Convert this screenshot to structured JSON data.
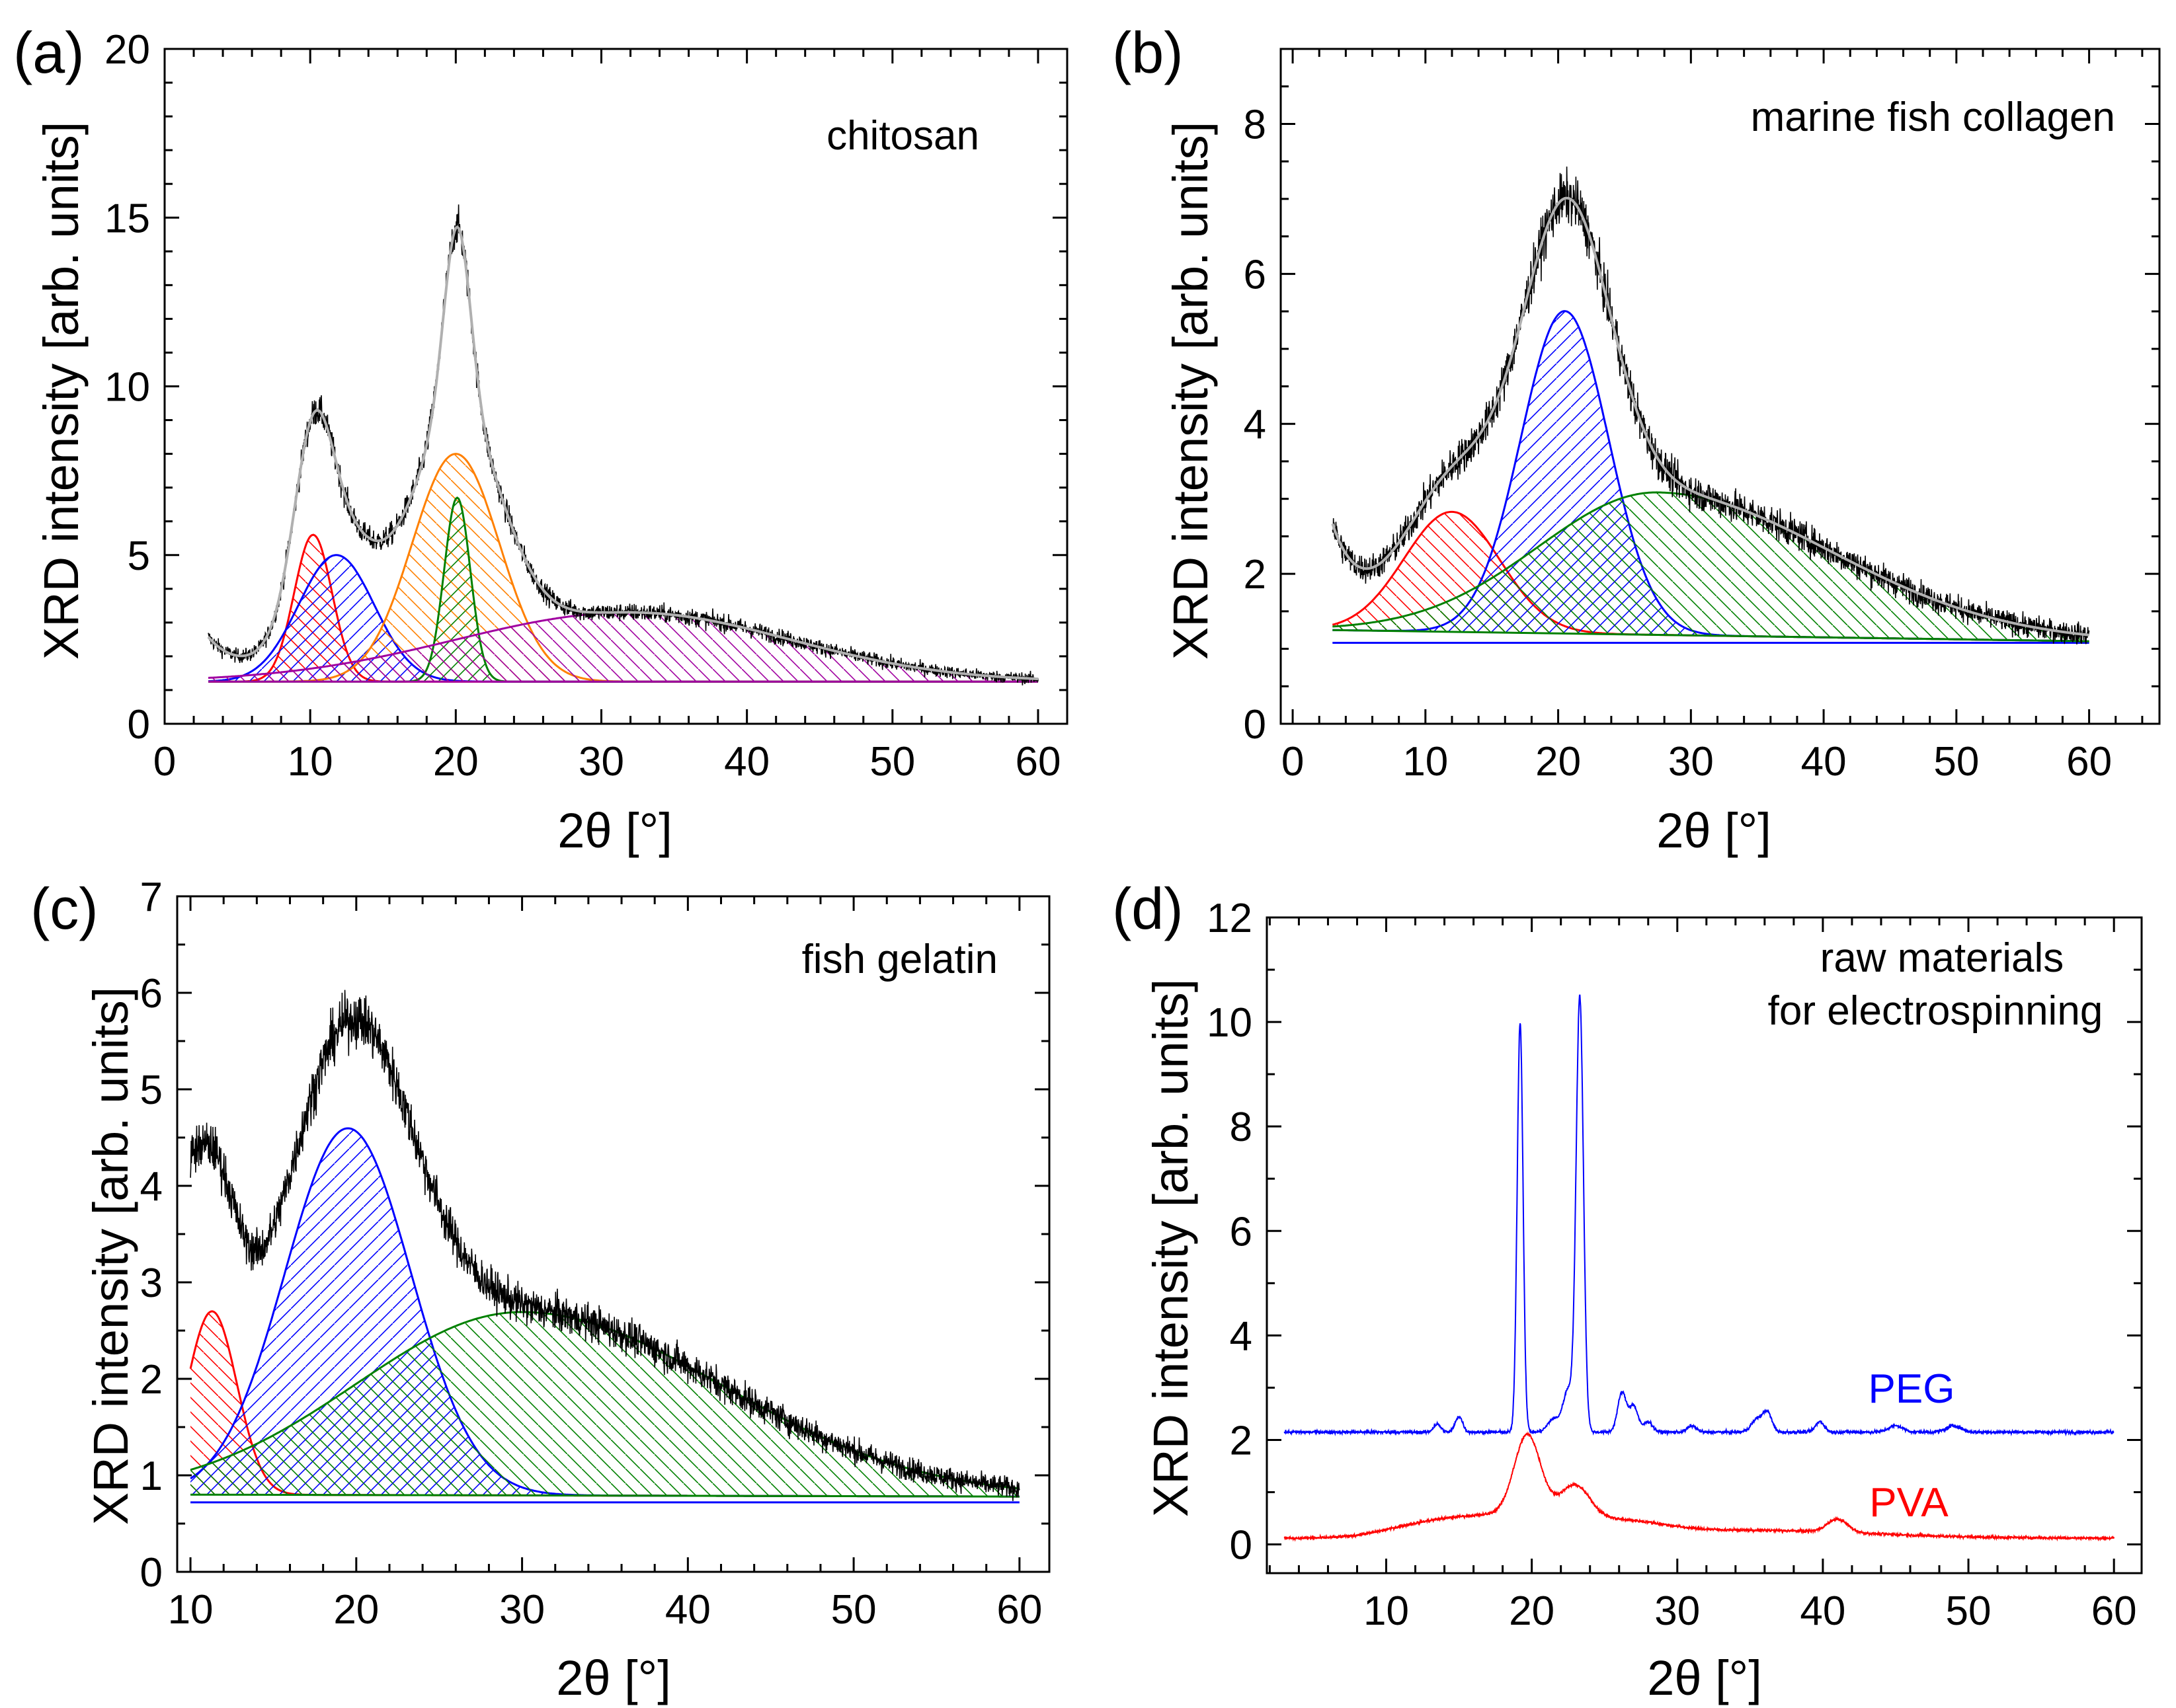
{
  "chart_data": [
    {
      "id": "a",
      "type": "line",
      "panel_label": "(a)",
      "sample_label": [
        "chitosan"
      ],
      "xlabel": "2θ [°]",
      "ylabel": "XRD intensity [arb. units]",
      "xlim": [
        0,
        62
      ],
      "ylim": [
        0,
        20
      ],
      "xticks": [
        0,
        10,
        20,
        30,
        40,
        50,
        60
      ],
      "yticks": [
        0,
        5,
        10,
        15,
        20
      ],
      "xminor": 2,
      "yminor": 1,
      "x_range": [
        3,
        60
      ],
      "baseline": [
        1.25,
        1.25
      ],
      "fit_line": true,
      "low_angle_rise": 1.2,
      "noise": 0.25,
      "components": [
        {
          "name": "peak1",
          "color": "#ff0000",
          "center": 10.2,
          "amplitude": 4.35,
          "sigma_left": 1.3,
          "sigma_right": 1.3
        },
        {
          "name": "peak2",
          "color": "#0000ff",
          "center": 11.8,
          "amplitude": 3.75,
          "sigma_left": 2.6,
          "sigma_right": 2.6
        },
        {
          "name": "peak3",
          "color": "#ff8000",
          "center": 20,
          "amplitude": 6.75,
          "sigma_left": 3.0,
          "sigma_right": 3.0
        },
        {
          "name": "peak4",
          "color": "#008000",
          "center": 20.1,
          "amplitude": 5.45,
          "sigma_left": 0.9,
          "sigma_right": 0.9
        },
        {
          "name": "peak5",
          "color": "#a000a0",
          "center": 32,
          "amplitude": 2.05,
          "sigma_left": 12,
          "sigma_right": 11
        }
      ]
    },
    {
      "id": "b",
      "type": "line",
      "panel_label": "(b)",
      "sample_label": [
        "marine fish collagen"
      ],
      "xlabel": "2θ [°]",
      "ylabel": "XRD intensity [arb. units]",
      "xlim": [
        -0.9,
        65.3
      ],
      "ylim": [
        0,
        9
      ],
      "xticks": [
        0,
        10,
        20,
        30,
        40,
        50,
        60
      ],
      "yticks": [
        0,
        2,
        4,
        6,
        8
      ],
      "xminor": 2,
      "yminor": 0.5,
      "x_range": [
        3,
        60
      ],
      "baseline": [
        1.25,
        1.1
      ],
      "flat_baseline": 1.08,
      "fit_line": true,
      "low_angle_rise": 1.3,
      "noise": 0.22,
      "components": [
        {
          "name": "peak1",
          "color": "#ff0000",
          "center": 12,
          "amplitude": 1.6,
          "sigma_left": 3.6,
          "sigma_right": 3.6
        },
        {
          "name": "peak2",
          "color": "#0000ff",
          "center": 20.5,
          "amplitude": 4.3,
          "sigma_left": 3.3,
          "sigma_right": 3.3
        },
        {
          "name": "peak3",
          "color": "#008000",
          "center": 27.5,
          "amplitude": 1.9,
          "sigma_left": 9,
          "sigma_right": 13
        }
      ]
    },
    {
      "id": "c",
      "type": "line",
      "panel_label": "(c)",
      "sample_label": [
        "fish gelatin"
      ],
      "xlabel": "2θ [°]",
      "ylabel": "XRD intensity [arb. units]",
      "xlim": [
        9.2,
        61.8
      ],
      "ylim": [
        0,
        7
      ],
      "xticks": [
        10,
        20,
        30,
        40,
        50,
        60
      ],
      "yticks": [
        0,
        1,
        2,
        3,
        4,
        5,
        6,
        7
      ],
      "xminor": 2,
      "yminor": 0.5,
      "x_range": [
        10,
        60
      ],
      "baseline": [
        0.8,
        0.78
      ],
      "flat_baseline": 0.72,
      "fit_line": false,
      "low_angle_rise": 1.8,
      "noise": 0.2,
      "components": [
        {
          "name": "peak1",
          "color": "#ff0000",
          "center": 11.3,
          "amplitude": 1.9,
          "sigma_left": 1.5,
          "sigma_right": 1.5
        },
        {
          "name": "peak2",
          "color": "#0000ff",
          "center": 19.5,
          "amplitude": 3.8,
          "sigma_left": 3.8,
          "sigma_right": 3.8
        },
        {
          "name": "peak3",
          "color": "#008000",
          "center": 30,
          "amplitude": 1.9,
          "sigma_left": 10,
          "sigma_right": 12
        }
      ]
    },
    {
      "id": "d",
      "type": "line",
      "panel_label": "(d)",
      "sample_label": [
        "raw materials",
        "for electrospinning"
      ],
      "xlabel": "2θ [°]",
      "ylabel": "XRD intensity [arb. units]",
      "xlim": [
        1.8,
        61.9
      ],
      "ylim": [
        -0.55,
        12
      ],
      "xticks": [
        10,
        20,
        30,
        40,
        50,
        60
      ],
      "yticks": [
        0,
        2,
        4,
        6,
        8,
        10,
        12
      ],
      "xminor": 2,
      "yminor": 1,
      "series": [
        {
          "name": "PEG",
          "color": "#0000ff",
          "x_range": [
            3,
            60
          ],
          "baseline": 2.15,
          "noise": 0.03,
          "peaks": [
            [
              13.5,
              0.15,
              0.25
            ],
            [
              15,
              0.3,
              0.25
            ],
            [
              19.2,
              7.85,
              0.2
            ],
            [
              21.5,
              0.25,
              0.4
            ],
            [
              22.5,
              0.8,
              0.35
            ],
            [
              23.3,
              8.3,
              0.25
            ],
            [
              26.2,
              0.75,
              0.3
            ],
            [
              27,
              0.5,
              0.3
            ],
            [
              28,
              0.2,
              0.3
            ],
            [
              31,
              0.12,
              0.3
            ],
            [
              35.5,
              0.25,
              0.4
            ],
            [
              36.2,
              0.35,
              0.3
            ],
            [
              39.8,
              0.2,
              0.3
            ],
            [
              45,
              0.12,
              0.5
            ],
            [
              49,
              0.12,
              0.5
            ]
          ]
        },
        {
          "name": "PVA",
          "color": "#ff0000",
          "x_range": [
            3,
            60
          ],
          "baseline": 0.12,
          "noise": 0.025,
          "peaks": [
            [
              12,
              0.2,
              2.5
            ],
            [
              16,
              0.3,
              2.5
            ],
            [
              19.7,
              1.5,
              0.9
            ],
            [
              20.5,
              0.35,
              2.5
            ],
            [
              23,
              0.6,
              1.0
            ],
            [
              26,
              0.25,
              3
            ],
            [
              41,
              0.25,
              0.7
            ],
            [
              35,
              0.15,
              8
            ]
          ]
        }
      ]
    }
  ]
}
